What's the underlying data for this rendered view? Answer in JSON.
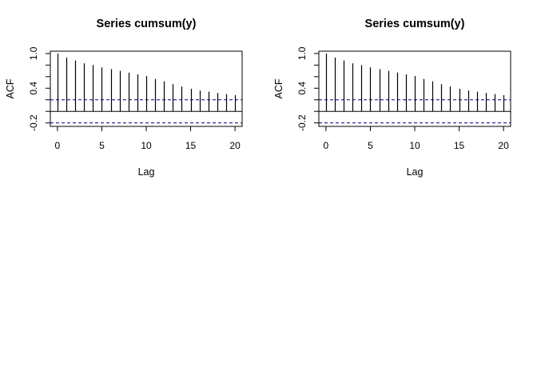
{
  "colors": {
    "background": "#ffffff",
    "ink": "#000000",
    "ci_line": "#00008b"
  },
  "chart_data": [
    {
      "type": "bar",
      "subtype": "acf",
      "title": "Series  cumsum(y)",
      "xlabel": "Lag",
      "ylabel": "ACF",
      "xlim": [
        -0.8,
        20.8
      ],
      "ylim": [
        -0.26,
        1.04
      ],
      "xticks": [
        0,
        5,
        10,
        15,
        20
      ],
      "xtick_labels": [
        "0",
        "5",
        "10",
        "15",
        "20"
      ],
      "yticks": [
        -0.2,
        0.0,
        0.2,
        0.4,
        0.6,
        0.8,
        1.0
      ],
      "ytick_labels": [
        "-0.2",
        "",
        "",
        "0.4",
        "",
        "",
        "1.0"
      ],
      "lags": [
        0,
        1,
        2,
        3,
        4,
        5,
        6,
        7,
        8,
        9,
        10,
        11,
        12,
        13,
        14,
        15,
        16,
        17,
        18,
        19,
        20
      ],
      "values": [
        1.0,
        0.93,
        0.88,
        0.83,
        0.8,
        0.76,
        0.73,
        0.7,
        0.67,
        0.64,
        0.61,
        0.56,
        0.52,
        0.47,
        0.43,
        0.39,
        0.36,
        0.34,
        0.32,
        0.3,
        0.28
      ],
      "ci_upper": 0.2,
      "ci_lower": -0.2,
      "grid": false
    },
    {
      "type": "bar",
      "subtype": "acf",
      "title": "Series  cumsum(y)",
      "xlabel": "Lag",
      "ylabel": "ACF",
      "xlim": [
        -0.8,
        20.8
      ],
      "ylim": [
        -0.26,
        1.04
      ],
      "xticks": [
        0,
        5,
        10,
        15,
        20
      ],
      "xtick_labels": [
        "0",
        "5",
        "10",
        "15",
        "20"
      ],
      "yticks": [
        -0.2,
        0.0,
        0.2,
        0.4,
        0.6,
        0.8,
        1.0
      ],
      "ytick_labels": [
        "-0.2",
        "",
        "",
        "0.4",
        "",
        "",
        "1.0"
      ],
      "lags": [
        0,
        1,
        2,
        3,
        4,
        5,
        6,
        7,
        8,
        9,
        10,
        11,
        12,
        13,
        14,
        15,
        16,
        17,
        18,
        19,
        20
      ],
      "values": [
        1.0,
        0.93,
        0.88,
        0.83,
        0.8,
        0.76,
        0.73,
        0.7,
        0.67,
        0.64,
        0.61,
        0.56,
        0.52,
        0.47,
        0.43,
        0.39,
        0.36,
        0.34,
        0.32,
        0.3,
        0.28
      ],
      "ci_upper": 0.2,
      "ci_lower": -0.2,
      "grid": false
    }
  ]
}
